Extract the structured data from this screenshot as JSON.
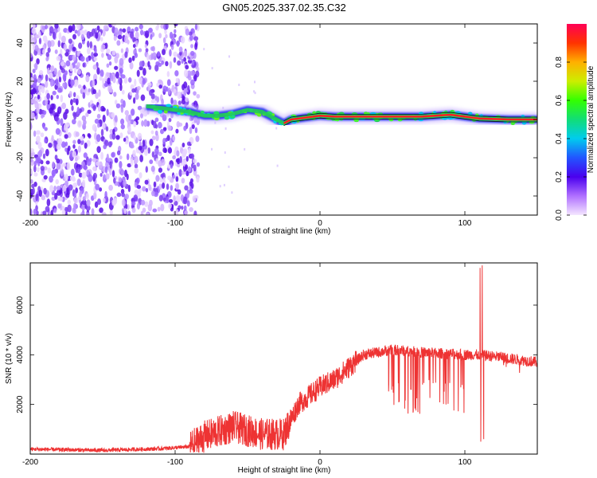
{
  "title": "GN05.2025.337.02.35.C32",
  "colors": {
    "snr_line": "#ee3333",
    "axes": "#000000",
    "track_core": "#ff2020",
    "track_mid": "#22cc55",
    "track_outer": "#2233ee",
    "scatter": "#6a22e8"
  },
  "chart_data": [
    {
      "type": "heatmap",
      "xlabel": "Height of straight line (km)",
      "ylabel": "Frequency (Hz)",
      "xlim": [
        -200,
        150
      ],
      "ylim": [
        -50,
        50
      ],
      "x_ticks": [
        "-200",
        "-100",
        "0",
        "100"
      ],
      "y_ticks": [
        "-40",
        "-20",
        "0",
        "20",
        "40"
      ],
      "colorbar": {
        "label": "Normalized spectral amplitude",
        "range": [
          0,
          1
        ],
        "ticks": [
          "0.0",
          "0.2",
          "0.4",
          "0.6",
          "0.8"
        ],
        "stops": [
          "#f4e6ff",
          "#b070ff",
          "#4a00ee",
          "#2255ff",
          "#00ccee",
          "#11dd77",
          "#33ff00",
          "#ccee00",
          "#ffb000",
          "#ff3300",
          "#ff0055"
        ]
      },
      "noise_region_x": [
        -200,
        -90
      ],
      "signal_track": [
        {
          "x": -120,
          "y": 7
        },
        {
          "x": -110,
          "y": 6
        },
        {
          "x": -100,
          "y": 5
        },
        {
          "x": -90,
          "y": 4
        },
        {
          "x": -80,
          "y": 2
        },
        {
          "x": -70,
          "y": 2
        },
        {
          "x": -60,
          "y": 3
        },
        {
          "x": -50,
          "y": 5
        },
        {
          "x": -40,
          "y": 4
        },
        {
          "x": -30,
          "y": 0
        },
        {
          "x": -25,
          "y": -2
        },
        {
          "x": -20,
          "y": 0
        },
        {
          "x": -10,
          "y": 1
        },
        {
          "x": 0,
          "y": 2
        },
        {
          "x": 10,
          "y": 1.5
        },
        {
          "x": 30,
          "y": 1.5
        },
        {
          "x": 50,
          "y": 1.5
        },
        {
          "x": 70,
          "y": 1.5
        },
        {
          "x": 90,
          "y": 2.5
        },
        {
          "x": 110,
          "y": 0.5
        },
        {
          "x": 130,
          "y": 0
        },
        {
          "x": 150,
          "y": 0
        }
      ]
    },
    {
      "type": "line",
      "xlabel": "Height of straight line (km)",
      "ylabel": "SNR (10 * v/v)",
      "xlim": [
        -200,
        150
      ],
      "ylim": [
        0,
        7700
      ],
      "x_ticks": [
        "-200",
        "-100",
        "0",
        "100"
      ],
      "y_ticks": [
        "2000",
        "4000",
        "6000"
      ],
      "series": [
        {
          "name": "SNR",
          "baseline": [
            {
              "x": -200,
              "y": 200
            },
            {
              "x": -150,
              "y": 150
            },
            {
              "x": -110,
              "y": 220
            },
            {
              "x": -90,
              "y": 300
            },
            {
              "x": -80,
              "y": 700
            },
            {
              "x": -60,
              "y": 1100
            },
            {
              "x": -40,
              "y": 800
            },
            {
              "x": -25,
              "y": 800
            },
            {
              "x": -15,
              "y": 2000
            },
            {
              "x": 0,
              "y": 2700
            },
            {
              "x": 10,
              "y": 3000
            },
            {
              "x": 20,
              "y": 3500
            },
            {
              "x": 30,
              "y": 4000
            },
            {
              "x": 50,
              "y": 4200
            },
            {
              "x": 70,
              "y": 4100
            },
            {
              "x": 100,
              "y": 4000
            },
            {
              "x": 110,
              "y": 4000
            },
            {
              "x": 125,
              "y": 3900
            },
            {
              "x": 150,
              "y": 3700
            }
          ],
          "spikes": [
            {
              "x": 110.5,
              "y": 7500
            },
            {
              "x": 112,
              "y": 7600
            },
            {
              "x": 111,
              "y": 500
            },
            {
              "x": 113,
              "y": 600
            }
          ]
        }
      ]
    }
  ]
}
